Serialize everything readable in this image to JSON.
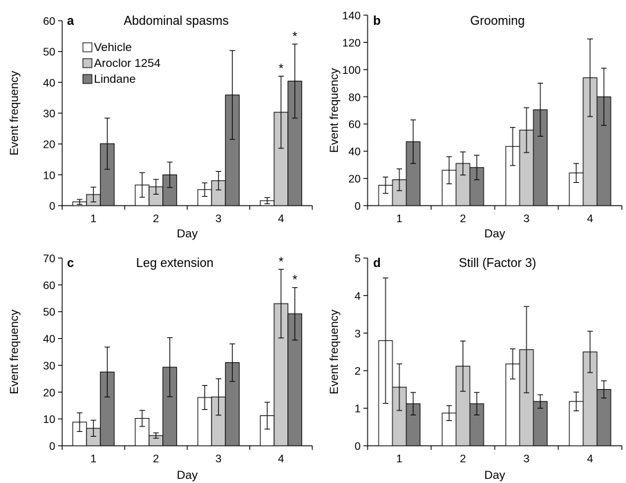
{
  "chart_data": [
    {
      "type": "bar",
      "letter": "a",
      "title": "Abdominal spasms",
      "xlabel": "Day",
      "ylabel": "Event frequency",
      "ylim": [
        0,
        60
      ],
      "yticks": [
        0,
        10,
        20,
        30,
        40,
        50,
        60
      ],
      "categories": [
        "1",
        "2",
        "3",
        "4"
      ],
      "legend": "top-left",
      "series": [
        {
          "name": "Vehicle",
          "color": "#ffffff",
          "values": [
            1.2,
            6.7,
            5.2,
            1.6
          ],
          "errors": [
            0.8,
            4.0,
            2.2,
            1.0
          ]
        },
        {
          "name": "Aroclor 1254",
          "color": "#c8c8c8",
          "values": [
            3.6,
            6.1,
            8.1,
            30.3
          ],
          "errors": [
            2.4,
            2.4,
            3.0,
            11.7
          ]
        },
        {
          "name": "Lindane",
          "color": "#7d7d7d",
          "values": [
            20.1,
            10.0,
            35.9,
            40.4
          ],
          "errors": [
            8.3,
            4.1,
            14.4,
            12.0
          ]
        }
      ],
      "annotations": [
        {
          "category": "4",
          "series": "Aroclor 1254",
          "text": "*"
        },
        {
          "category": "4",
          "series": "Lindane",
          "text": "*"
        }
      ]
    },
    {
      "type": "bar",
      "letter": "b",
      "title": "Grooming",
      "xlabel": "Day",
      "ylabel": "Event frequency",
      "ylim": [
        0,
        140
      ],
      "yticks": [
        0,
        20,
        40,
        60,
        80,
        100,
        120,
        140
      ],
      "categories": [
        "1",
        "2",
        "3",
        "4"
      ],
      "series": [
        {
          "name": "Vehicle",
          "color": "#ffffff",
          "values": [
            15,
            26,
            43.5,
            24
          ],
          "errors": [
            6,
            10,
            14,
            7
          ]
        },
        {
          "name": "Aroclor 1254",
          "color": "#c8c8c8",
          "values": [
            19,
            31,
            55.5,
            94
          ],
          "errors": [
            8,
            8.5,
            16.5,
            28.5
          ]
        },
        {
          "name": "Lindane",
          "color": "#7d7d7d",
          "values": [
            47,
            28,
            70.5,
            80
          ],
          "errors": [
            16,
            9,
            19.5,
            21
          ]
        }
      ],
      "annotations": []
    },
    {
      "type": "bar",
      "letter": "c",
      "title": "Leg extension",
      "xlabel": "Day",
      "ylabel": "Event frequency",
      "ylim": [
        0,
        70
      ],
      "yticks": [
        0,
        10,
        20,
        30,
        40,
        50,
        60,
        70
      ],
      "categories": [
        "1",
        "2",
        "3",
        "4"
      ],
      "series": [
        {
          "name": "Vehicle",
          "color": "#ffffff",
          "values": [
            8.8,
            10.2,
            18,
            11.2
          ],
          "errors": [
            3.5,
            3,
            4.5,
            5
          ]
        },
        {
          "name": "Aroclor 1254",
          "color": "#c8c8c8",
          "values": [
            6.5,
            3.8,
            18.2,
            53
          ],
          "errors": [
            3,
            1,
            6.8,
            12.8
          ]
        },
        {
          "name": "Lindane",
          "color": "#7d7d7d",
          "values": [
            27.5,
            29.3,
            31,
            49.2
          ],
          "errors": [
            9.3,
            11,
            7,
            9.8
          ]
        }
      ],
      "annotations": [
        {
          "category": "4",
          "series": "Aroclor 1254",
          "text": "*"
        },
        {
          "category": "4",
          "series": "Lindane",
          "text": "*"
        }
      ]
    },
    {
      "type": "bar",
      "letter": "d",
      "title": "Still (Factor 3)",
      "xlabel": "Day",
      "ylabel": "Event frequency",
      "ylim": [
        0,
        5
      ],
      "yticks": [
        0,
        1,
        2,
        3,
        4,
        5
      ],
      "categories": [
        "1",
        "2",
        "3",
        "4"
      ],
      "series": [
        {
          "name": "Vehicle",
          "color": "#ffffff",
          "values": [
            2.8,
            0.87,
            2.18,
            1.18
          ],
          "errors": [
            1.67,
            0.2,
            0.4,
            0.25
          ]
        },
        {
          "name": "Aroclor 1254",
          "color": "#c8c8c8",
          "values": [
            1.56,
            2.12,
            2.56,
            2.5
          ],
          "errors": [
            0.62,
            0.67,
            1.15,
            0.55
          ]
        },
        {
          "name": "Lindane",
          "color": "#7d7d7d",
          "values": [
            1.12,
            1.12,
            1.18,
            1.5
          ],
          "errors": [
            0.3,
            0.3,
            0.18,
            0.23
          ]
        }
      ],
      "annotations": []
    }
  ]
}
